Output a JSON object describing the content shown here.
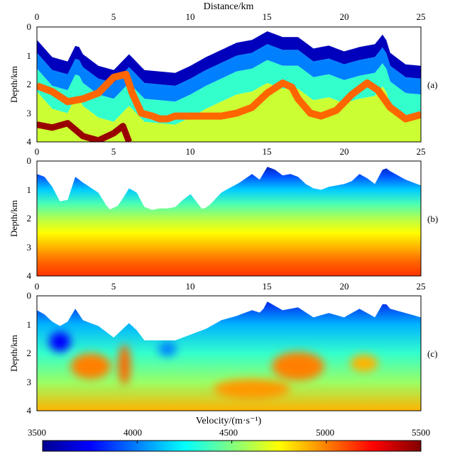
{
  "chart_data": [
    {
      "type": "heatmap",
      "panel_label": "(a)",
      "title": "Distance/km",
      "xlabel": "",
      "ylabel": "Depth/km",
      "xlim": [
        0,
        25
      ],
      "ylim": [
        0,
        4
      ],
      "x_ticks": [
        0,
        5,
        10,
        15,
        20,
        25
      ],
      "y_ticks": [
        0,
        1,
        2,
        3,
        4
      ],
      "surface_depth": [
        [
          0,
          0.45
        ],
        [
          1,
          1.05
        ],
        [
          2,
          1.2
        ],
        [
          2.6,
          0.55
        ],
        [
          3,
          0.95
        ],
        [
          4,
          1.35
        ],
        [
          5,
          1.5
        ],
        [
          6,
          0.95
        ],
        [
          7,
          1.5
        ],
        [
          8,
          1.55
        ],
        [
          9,
          1.6
        ],
        [
          10,
          1.35
        ],
        [
          11,
          1.05
        ],
        [
          12,
          0.8
        ],
        [
          13,
          0.55
        ],
        [
          14,
          0.45
        ],
        [
          15,
          0.15
        ],
        [
          16,
          0.35
        ],
        [
          17,
          0.35
        ],
        [
          18,
          0.75
        ],
        [
          19,
          0.65
        ],
        [
          20,
          0.85
        ],
        [
          21,
          0.7
        ],
        [
          22,
          0.6
        ],
        [
          22.6,
          0.2
        ],
        [
          23,
          0.9
        ],
        [
          24,
          1.3
        ],
        [
          25,
          1.35
        ]
      ],
      "layers": [
        {
          "velocity": 3600,
          "top_offset": 0,
          "bottom_offset": 0.45
        },
        {
          "velocity": 4000,
          "top_offset": 0.45,
          "bottom_offset": 1.0
        },
        {
          "velocity": 4350,
          "top_offset": 1.0,
          "bottom_offset": 1.8
        },
        {
          "velocity": 4650,
          "top_offset": 1.8,
          "bottom_offset": 4.0
        }
      ],
      "red_reflector": [
        [
          0,
          2.05
        ],
        [
          1,
          2.25
        ],
        [
          2,
          2.6
        ],
        [
          3,
          2.5
        ],
        [
          4,
          2.3
        ],
        [
          5,
          1.75
        ],
        [
          5.8,
          1.65
        ],
        [
          6.2,
          2.3
        ],
        [
          6.8,
          3.0
        ],
        [
          7.5,
          3.1
        ],
        [
          8,
          3.2
        ],
        [
          8.5,
          3.2
        ],
        [
          9,
          3.1
        ],
        [
          10,
          3.1
        ],
        [
          11,
          3.1
        ],
        [
          12,
          3.1
        ],
        [
          13,
          3.0
        ],
        [
          14,
          2.8
        ],
        [
          15,
          2.3
        ],
        [
          16,
          1.95
        ],
        [
          16.6,
          2.1
        ],
        [
          17,
          2.5
        ],
        [
          17.8,
          3.0
        ],
        [
          18.5,
          3.1
        ],
        [
          19.5,
          2.9
        ],
        [
          20.5,
          2.35
        ],
        [
          21.5,
          1.95
        ],
        [
          22.2,
          2.2
        ],
        [
          23,
          2.8
        ],
        [
          24,
          3.2
        ],
        [
          25,
          3.05
        ]
      ],
      "deep_reflector": [
        [
          0,
          3.4
        ],
        [
          1,
          3.5
        ],
        [
          2,
          3.35
        ],
        [
          3,
          3.8
        ],
        [
          4,
          3.95
        ],
        [
          5,
          3.7
        ],
        [
          5.6,
          3.45
        ],
        [
          6,
          4.0
        ]
      ]
    },
    {
      "type": "heatmap",
      "panel_label": "(b)",
      "xlabel": "",
      "ylabel": "Depth/km",
      "xlim": [
        0,
        25
      ],
      "ylim": [
        0,
        4
      ],
      "x_ticks": [
        0,
        5,
        10,
        15,
        20,
        25
      ],
      "y_ticks": [
        0,
        1,
        2,
        3,
        4
      ],
      "surface_depth": [
        [
          0,
          0.45
        ],
        [
          0.5,
          0.55
        ],
        [
          1,
          0.9
        ],
        [
          1.5,
          1.4
        ],
        [
          2,
          1.35
        ],
        [
          2.5,
          0.55
        ],
        [
          3,
          0.75
        ],
        [
          4,
          1.1
        ],
        [
          4.7,
          1.7
        ],
        [
          5.3,
          1.55
        ],
        [
          6,
          0.95
        ],
        [
          6.5,
          1.1
        ],
        [
          7,
          1.6
        ],
        [
          7.5,
          1.7
        ],
        [
          8,
          1.65
        ],
        [
          8.5,
          1.65
        ],
        [
          9,
          1.6
        ],
        [
          9.5,
          1.35
        ],
        [
          10,
          1.15
        ],
        [
          10.8,
          1.7
        ],
        [
          11.3,
          1.5
        ],
        [
          12,
          1.1
        ],
        [
          12.5,
          0.95
        ],
        [
          13.2,
          0.75
        ],
        [
          14,
          0.45
        ],
        [
          14.5,
          0.65
        ],
        [
          15,
          0.2
        ],
        [
          15.5,
          0.3
        ],
        [
          16,
          0.5
        ],
        [
          16.5,
          0.45
        ],
        [
          17,
          0.55
        ],
        [
          17.5,
          0.8
        ],
        [
          18,
          0.95
        ],
        [
          18.5,
          1.0
        ],
        [
          19,
          0.9
        ],
        [
          19.5,
          0.85
        ],
        [
          20,
          0.8
        ],
        [
          20.5,
          0.7
        ],
        [
          21,
          0.45
        ],
        [
          21.5,
          0.6
        ],
        [
          22,
          0.8
        ],
        [
          22.6,
          0.2
        ],
        [
          23,
          0.35
        ],
        [
          24,
          0.65
        ],
        [
          25,
          0.85
        ]
      ],
      "gradient_velocity": [
        [
          0,
          3500
        ],
        [
          0.5,
          3900
        ],
        [
          1.0,
          4150
        ],
        [
          1.5,
          4400
        ],
        [
          2.0,
          4600
        ],
        [
          2.5,
          4750
        ],
        [
          3.0,
          4900
        ],
        [
          3.5,
          5050
        ],
        [
          4.0,
          5150
        ]
      ]
    },
    {
      "type": "heatmap",
      "panel_label": "(c)",
      "xlabel": "Velocity/(m·s⁻¹)",
      "ylabel": "Depth/km",
      "xlim": [
        0,
        25
      ],
      "ylim": [
        0,
        4
      ],
      "x_ticks": [
        0,
        5,
        10,
        15,
        20,
        25
      ],
      "y_ticks": [
        0,
        1,
        2,
        3,
        4
      ],
      "surface_depth": [
        [
          0,
          0.5
        ],
        [
          0.5,
          0.65
        ],
        [
          1,
          0.9
        ],
        [
          1.5,
          1.05
        ],
        [
          2,
          0.9
        ],
        [
          2.5,
          0.45
        ],
        [
          3,
          0.85
        ],
        [
          4,
          1.05
        ],
        [
          5,
          1.45
        ],
        [
          6,
          0.95
        ],
        [
          6.5,
          1.2
        ],
        [
          7,
          1.55
        ],
        [
          8,
          1.55
        ],
        [
          9,
          1.55
        ],
        [
          10,
          1.35
        ],
        [
          11,
          1.15
        ],
        [
          12,
          0.85
        ],
        [
          13,
          0.7
        ],
        [
          14,
          0.5
        ],
        [
          14.6,
          0.6
        ],
        [
          15,
          0.2
        ],
        [
          15.5,
          0.35
        ],
        [
          16,
          0.5
        ],
        [
          17,
          0.4
        ],
        [
          18,
          0.75
        ],
        [
          19,
          0.6
        ],
        [
          20,
          0.75
        ],
        [
          21,
          0.45
        ],
        [
          22,
          0.75
        ],
        [
          22.6,
          0.2
        ],
        [
          23,
          0.45
        ],
        [
          24,
          0.6
        ],
        [
          25,
          0.75
        ]
      ],
      "background_gradient": [
        [
          0,
          3700
        ],
        [
          1,
          4100
        ],
        [
          2,
          4350
        ],
        [
          3,
          4550
        ],
        [
          4,
          4900
        ]
      ],
      "anomalies": [
        {
          "x": 3.5,
          "y": 2.45,
          "rx": 1.3,
          "ry": 0.45,
          "velocity": 5000
        },
        {
          "x": 5.7,
          "y": 2.4,
          "rx": 0.4,
          "ry": 0.7,
          "velocity": 5050
        },
        {
          "x": 17.0,
          "y": 2.45,
          "rx": 1.7,
          "ry": 0.5,
          "velocity": 5000
        },
        {
          "x": 21.3,
          "y": 2.35,
          "rx": 0.9,
          "ry": 0.3,
          "velocity": 4900
        },
        {
          "x": 14.0,
          "y": 3.25,
          "rx": 2.5,
          "ry": 0.35,
          "velocity": 4950
        },
        {
          "x": 1.5,
          "y": 1.6,
          "rx": 0.7,
          "ry": 0.35,
          "velocity": 3750
        },
        {
          "x": 8.5,
          "y": 1.85,
          "rx": 0.6,
          "ry": 0.25,
          "velocity": 4000
        }
      ]
    }
  ],
  "colorbar": {
    "ticks": [
      3500,
      4000,
      4500,
      5000,
      5500
    ],
    "min": 3500,
    "max": 5500
  },
  "colors": {
    "jet": [
      "#00008f",
      "#0000ff",
      "#0080ff",
      "#00ffff",
      "#80ff80",
      "#ffff00",
      "#ff8000",
      "#ff0000",
      "#800000"
    ]
  }
}
